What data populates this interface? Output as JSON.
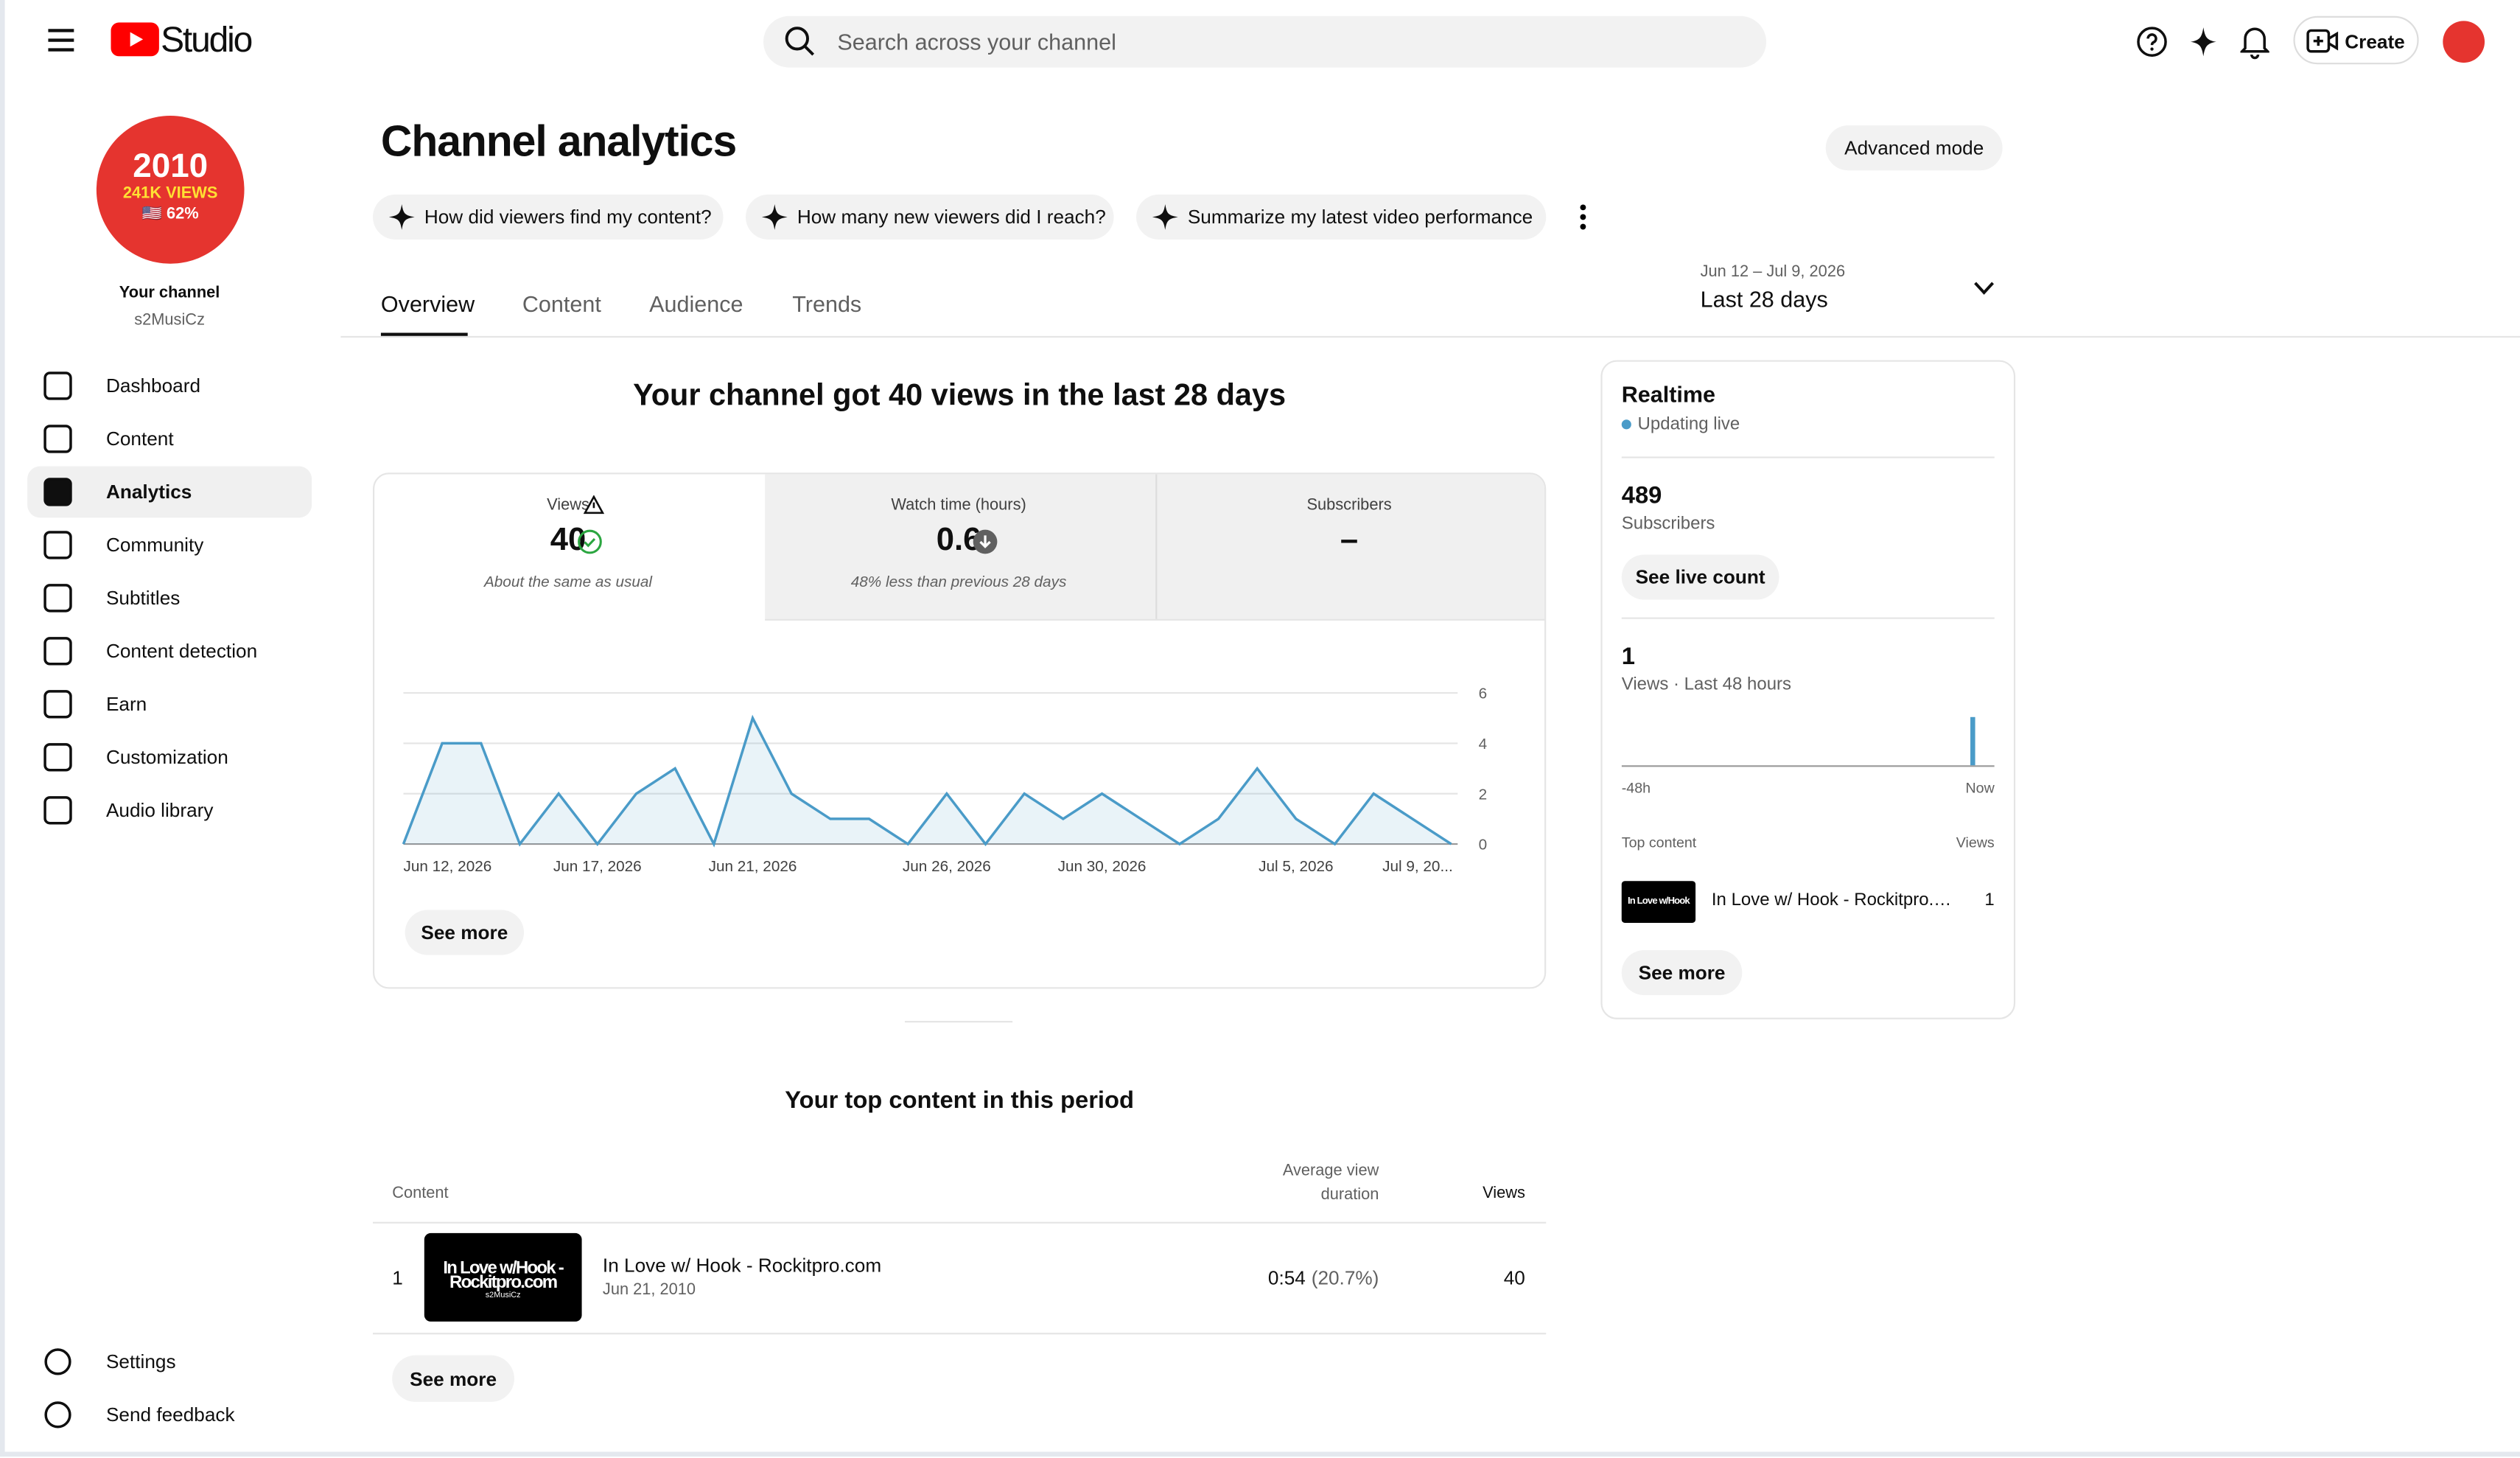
{
  "header": {
    "logo": "Studio",
    "search_placeholder": "Search across your channel",
    "create": "Create"
  },
  "avatar": {
    "line1": "2010",
    "line2": "241K VIEWS",
    "line3": "🇺🇸 62%"
  },
  "sidebar": {
    "channel_label": "Your channel",
    "channel_name": "s2MusiCz",
    "nav": [
      "Dashboard",
      "Content",
      "Analytics",
      "Community",
      "Subtitles",
      "Content detection",
      "Earn",
      "Customization",
      "Audio library"
    ],
    "active": 2,
    "footer": [
      "Settings",
      "Send feedback"
    ]
  },
  "page": {
    "title": "Channel analytics",
    "advanced_mode": "Advanced mode",
    "prompts": [
      "How did viewers find my content?",
      "How many new viewers did I reach?",
      "Summarize my latest video performance"
    ],
    "tabs": [
      "Overview",
      "Content",
      "Audience",
      "Trends"
    ],
    "active_tab": 0,
    "date_range": "Jun 12 – Jul 9, 2026",
    "period": "Last 28 days"
  },
  "overview": {
    "headline": "Your channel got 40 views in the last 28 days",
    "metrics": [
      {
        "label": "Views",
        "value": 40,
        "note": "About the same as usual"
      },
      {
        "label": "Watch time (hours)",
        "value": 0.6,
        "note": "48% less than previous 28 days"
      },
      {
        "label": "Subscribers",
        "value": "–"
      }
    ],
    "see_more": "See more"
  },
  "chart_data": {
    "type": "line",
    "categories": [
      "Jun 12, 2026",
      null,
      null,
      null,
      null,
      "Jun 17, 2026",
      null,
      null,
      null,
      "Jun 21, 2026",
      null,
      null,
      null,
      null,
      "Jun 26, 2026",
      null,
      null,
      null,
      "Jun 30, 2026",
      null,
      null,
      null,
      null,
      "Jul 5, 2026",
      null,
      null,
      null,
      "Jul 9, 20..."
    ],
    "series": [
      {
        "name": "Views",
        "color": "#4a9bc8",
        "values": [
          0,
          4,
          4,
          0,
          2,
          0,
          2,
          3,
          0,
          5,
          2,
          1,
          1,
          0,
          2,
          0,
          2,
          1,
          2,
          1,
          0,
          1,
          3,
          1,
          0,
          2,
          1,
          0
        ]
      }
    ],
    "ylim": [
      0,
      6
    ],
    "yticks": [
      0,
      2,
      4,
      6
    ],
    "grid": true
  },
  "top_content": {
    "title": "Your top content in this period",
    "columns": [
      "Content",
      "Average view duration",
      "Views"
    ],
    "rows": [
      {
        "rank": 1,
        "thumb": "In Love w/Hook - Rockitpro.com",
        "thumb_channel": "s2MusiCz",
        "title": "In Love w/ Hook - Rockitpro.com",
        "date": "Jun 21, 2010",
        "avd": "0:54",
        "avd_pct": "(20.7%)",
        "views": 40
      }
    ],
    "see_more": "See more"
  },
  "realtime": {
    "title": "Realtime",
    "status": "Updating live",
    "subscribers": 489,
    "subscribers_label": "Subscribers",
    "see_live_count": "See live count",
    "views": 1,
    "views_label": "Views · Last 48 hours",
    "chart": {
      "values": [
        1
      ],
      "start_label": "-48h",
      "end_label": "Now"
    },
    "top_content_label": "Top content",
    "views_column": "Views",
    "item": {
      "thumb": "In Love w/Hook",
      "title": "In Love w/ Hook - Rockitpro.com",
      "views": 1
    },
    "see_more": "See more"
  }
}
